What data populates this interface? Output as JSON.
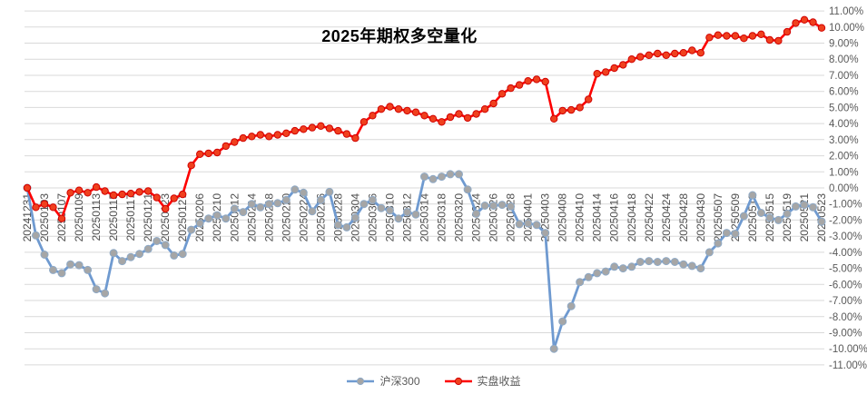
{
  "page": {
    "background": "#ffffff"
  },
  "chart_data": {
    "type": "line",
    "title": "2025年期权多空量化",
    "grid": true,
    "legend_position": "bottom",
    "ylim": [
      -11,
      11
    ],
    "y_tick_step": 1,
    "y_ticks": [
      "11.00%",
      "10.00%",
      "9.00%",
      "8.00%",
      "7.00%",
      "6.00%",
      "5.00%",
      "4.00%",
      "3.00%",
      "2.00%",
      "1.00%",
      "0.00%",
      "-1.00%",
      "-2.00%",
      "-3.00%",
      "-4.00%",
      "-5.00%",
      "-6.00%",
      "-7.00%",
      "-8.00%",
      "-9.00%",
      "-10.00%",
      "-11.00%"
    ],
    "x_label_interval": 2,
    "x": [
      "20241231",
      "20250102",
      "20250103",
      "20250106",
      "20250107",
      "20250108",
      "20250109",
      "20250110",
      "20250113",
      "20250114",
      "20250115",
      "20250116",
      "20250117",
      "20250120",
      "20250121",
      "20250122",
      "20250123",
      "20250124",
      "20250127",
      "20250205",
      "20250206",
      "20250207",
      "20250210",
      "20250211",
      "20250212",
      "20250213",
      "20250214",
      "20250217",
      "20250218",
      "20250219",
      "20250220",
      "20250221",
      "20250224",
      "20250225",
      "20250226",
      "20250227",
      "20250228",
      "20250303",
      "20250304",
      "20250305",
      "20250306",
      "20250307",
      "20250310",
      "20250311",
      "20250312",
      "20250313",
      "20250314",
      "20250317",
      "20250318",
      "20250319",
      "20250320",
      "20250321",
      "20250324",
      "20250325",
      "20250326",
      "20250327",
      "20250328",
      "20250331",
      "20250401",
      "20250402",
      "20250403",
      "20250407",
      "20250408",
      "20250409",
      "20250410",
      "20250411",
      "20250414",
      "20250415",
      "20250416",
      "20250417",
      "20250418",
      "20250421",
      "20250422",
      "20250423",
      "20250424",
      "20250425",
      "20250428",
      "20250429",
      "20250430",
      "20250506",
      "20250507",
      "20250508",
      "20250509",
      "20250512",
      "20250513",
      "20250514",
      "20250515",
      "20250516",
      "20250519",
      "20250520",
      "20250521",
      "20250522",
      "20250523"
    ],
    "series": [
      {
        "name": "沪深300",
        "line_color": "#6f9ad0",
        "marker_color": "#a6a6a6",
        "marker_stroke": "#8ea9c6",
        "values": [
          0.0,
          -2.95,
          -4.15,
          -5.1,
          -5.3,
          -4.75,
          -4.8,
          -5.1,
          -6.3,
          -6.55,
          -4.05,
          -4.55,
          -4.3,
          -4.1,
          -3.8,
          -3.3,
          -3.55,
          -4.2,
          -4.1,
          -2.6,
          -2.2,
          -1.9,
          -1.7,
          -1.9,
          -1.3,
          -1.5,
          -1.0,
          -1.2,
          -1.0,
          -0.95,
          -0.75,
          -0.1,
          -0.3,
          -1.45,
          -0.75,
          -0.25,
          -2.3,
          -2.45,
          -1.85,
          -1.0,
          -0.75,
          -1.25,
          -1.4,
          -1.9,
          -1.5,
          -1.65,
          0.7,
          0.55,
          0.7,
          0.85,
          0.85,
          -0.1,
          -1.6,
          -1.1,
          -1.1,
          -1.05,
          -1.15,
          -2.25,
          -2.2,
          -2.3,
          -2.8,
          -10.0,
          -8.3,
          -7.35,
          -5.85,
          -5.55,
          -5.3,
          -5.2,
          -4.9,
          -5.0,
          -4.9,
          -4.6,
          -4.55,
          -4.6,
          -4.55,
          -4.6,
          -4.75,
          -4.85,
          -5.0,
          -4.0,
          -3.45,
          -2.8,
          -2.85,
          -1.75,
          -0.45,
          -1.55,
          -1.85,
          -2.0,
          -1.6,
          -1.15,
          -1.05,
          -1.2,
          -2.1
        ]
      },
      {
        "name": "实盘收益",
        "line_color": "#fe0000",
        "marker_color": "#f0401e",
        "marker_stroke": "#d00000",
        "values": [
          0.0,
          -1.2,
          -1.0,
          -1.2,
          -1.9,
          -0.3,
          -0.15,
          -0.3,
          0.05,
          -0.2,
          -0.45,
          -0.4,
          -0.35,
          -0.25,
          -0.2,
          -0.6,
          -1.3,
          -0.65,
          -0.4,
          1.4,
          2.1,
          2.15,
          2.2,
          2.6,
          2.85,
          3.1,
          3.2,
          3.3,
          3.2,
          3.3,
          3.4,
          3.55,
          3.65,
          3.75,
          3.85,
          3.7,
          3.55,
          3.35,
          3.1,
          4.1,
          4.5,
          4.9,
          5.05,
          4.9,
          4.8,
          4.7,
          4.5,
          4.3,
          4.1,
          4.4,
          4.6,
          4.35,
          4.6,
          4.9,
          5.25,
          5.85,
          6.2,
          6.4,
          6.65,
          6.75,
          6.6,
          4.3,
          4.8,
          4.85,
          5.0,
          5.5,
          7.1,
          7.2,
          7.45,
          7.65,
          8.0,
          8.15,
          8.25,
          8.35,
          8.25,
          8.35,
          8.4,
          8.55,
          8.4,
          9.35,
          9.5,
          9.45,
          9.45,
          9.3,
          9.45,
          9.55,
          9.2,
          9.15,
          9.7,
          10.25,
          10.45,
          10.3,
          9.95
        ]
      }
    ]
  }
}
